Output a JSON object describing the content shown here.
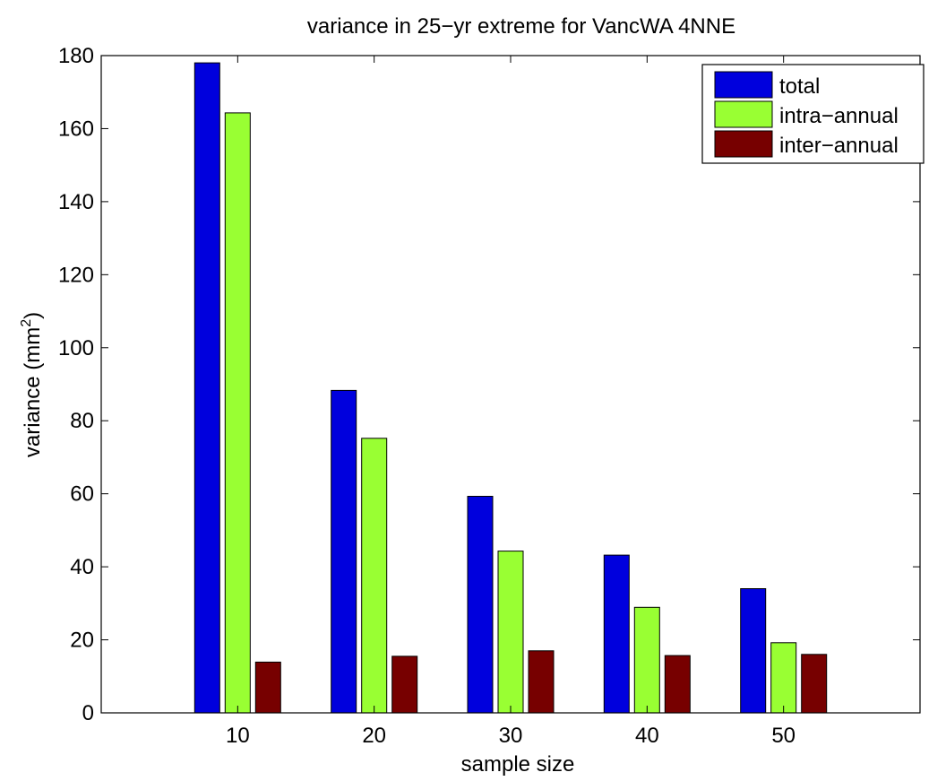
{
  "chart_data": {
    "type": "bar",
    "title": "variance in 25−yr extreme for VancWA 4NNE",
    "xlabel": "sample size",
    "ylabel_main": "variance (mm",
    "ylabel_sup": "2",
    "ylabel_close": ")",
    "categories": [
      "10",
      "20",
      "30",
      "40",
      "50"
    ],
    "x": [
      10,
      20,
      30,
      40,
      50
    ],
    "xlim": [
      0,
      60
    ],
    "ylim": [
      0,
      180
    ],
    "yticks": [
      0,
      20,
      40,
      60,
      80,
      100,
      120,
      140,
      160,
      180
    ],
    "legend_position": "top-right",
    "series": [
      {
        "name": "total",
        "color": "#0000dd",
        "values": [
          178,
          88.3,
          59.3,
          43.2,
          34.0
        ]
      },
      {
        "name": "intra−annual",
        "color": "#99ff33",
        "values": [
          164.3,
          75.2,
          44.3,
          28.9,
          19.2
        ]
      },
      {
        "name": "inter−annual",
        "color": "#770000",
        "values": [
          13.9,
          15.5,
          17.0,
          15.7,
          16.0
        ]
      }
    ]
  }
}
